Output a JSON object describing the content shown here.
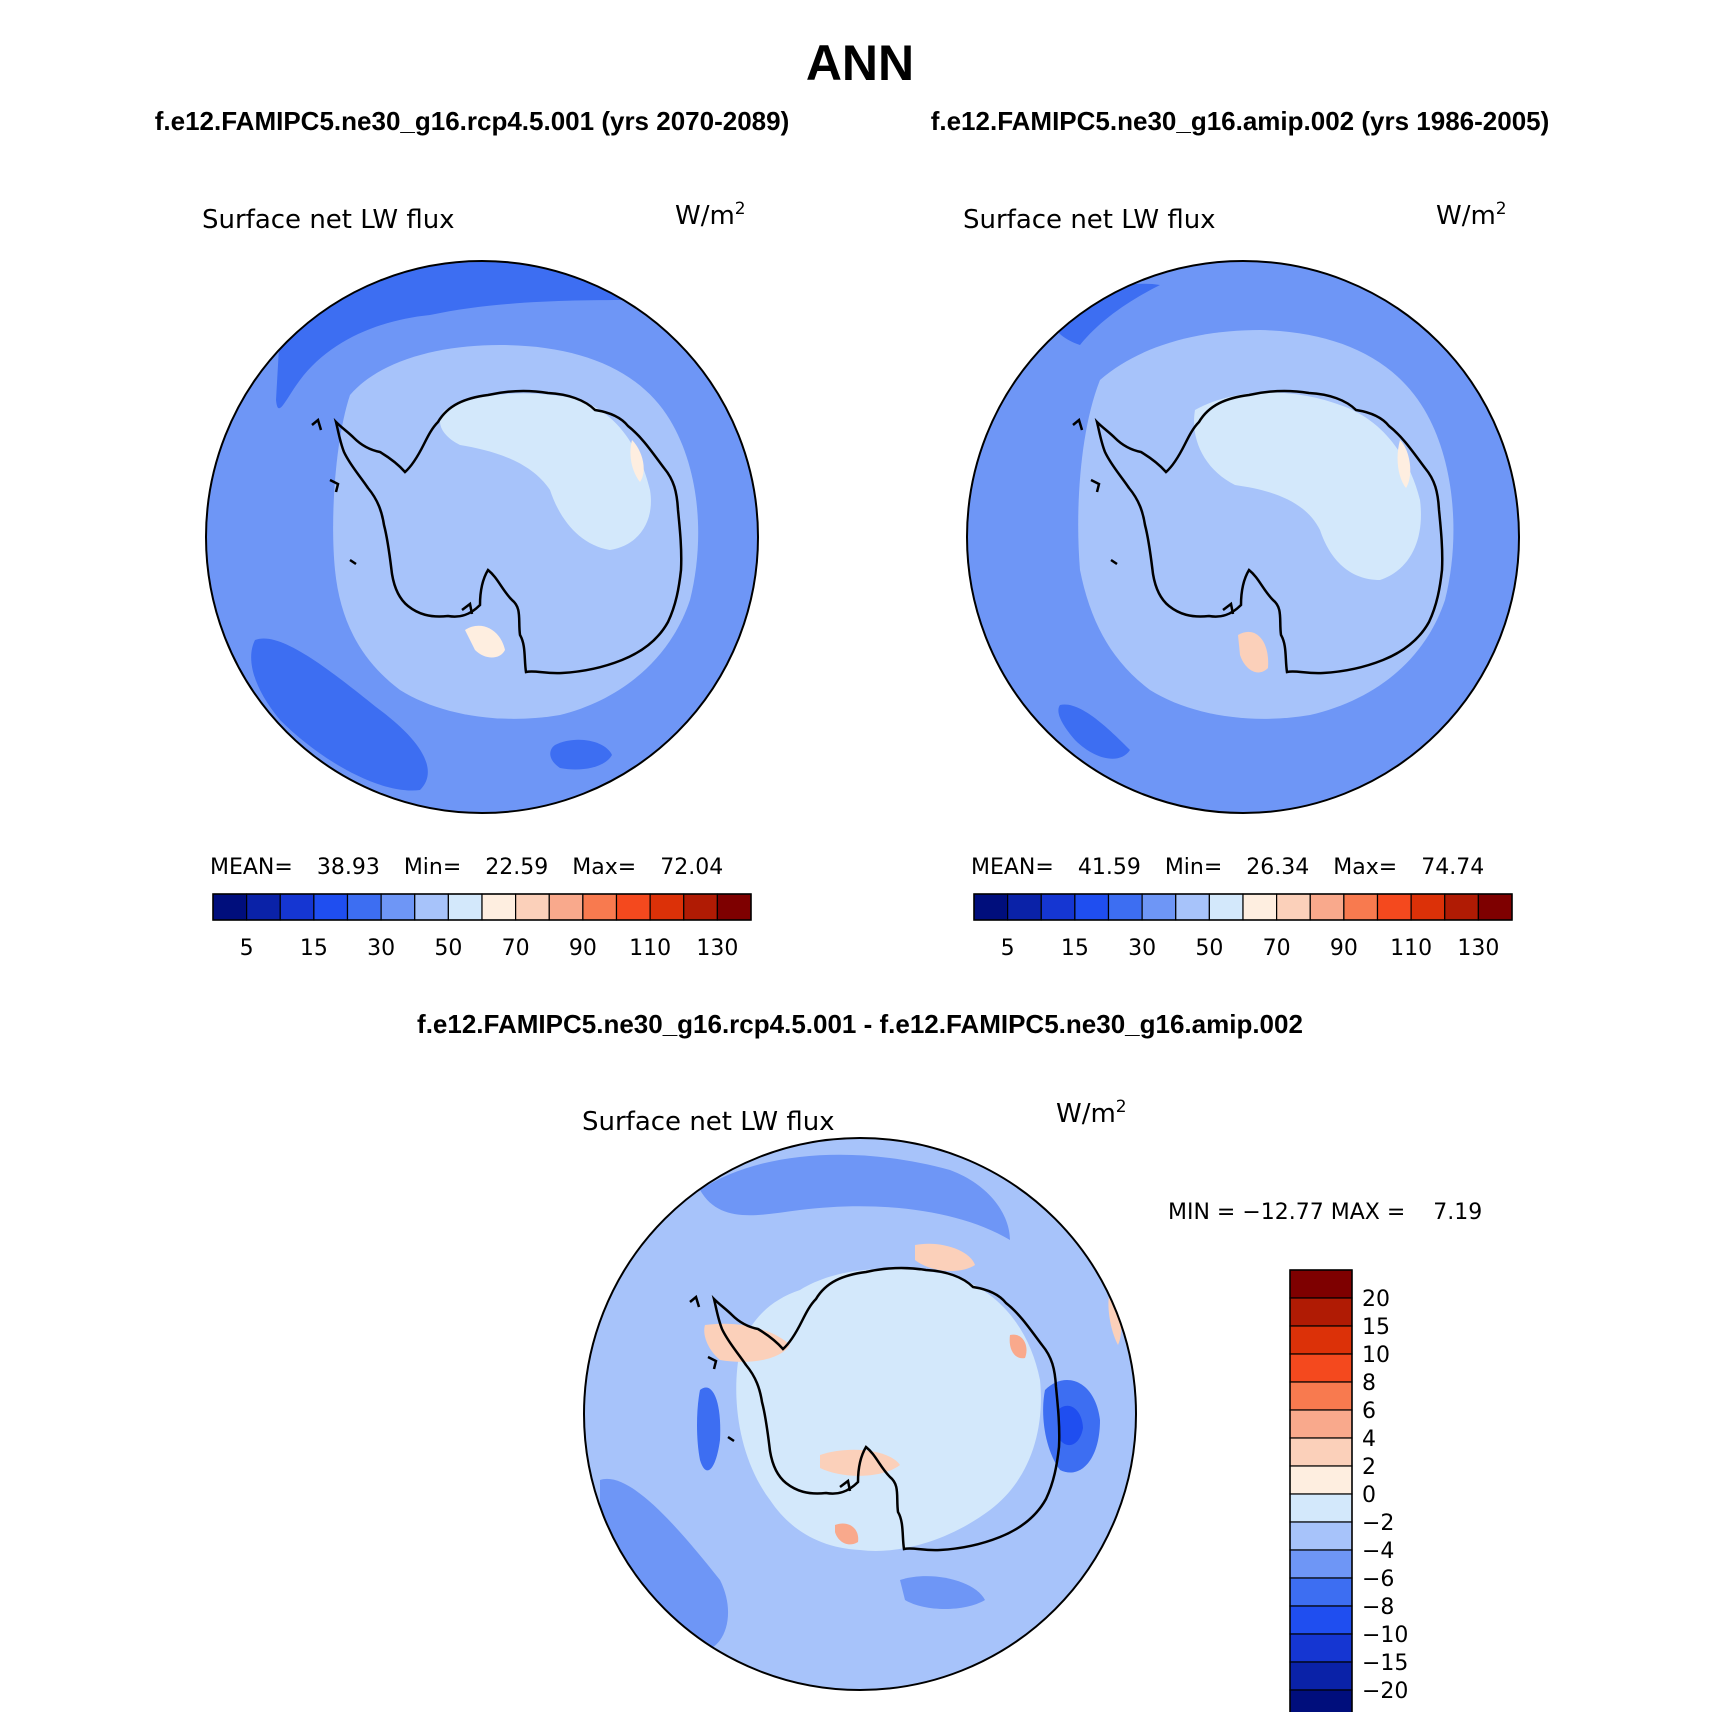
{
  "figure": {
    "title": "ANN",
    "subtitle_left": "f.e12.FAMIPC5.ne30_g16.rcp4.5.001 (yrs 2070-2089)",
    "subtitle_right": "f.e12.FAMIPC5.ne30_g16.amip.002 (yrs 1986-2005)",
    "diff_title": "f.e12.FAMIPC5.ne30_g16.rcp4.5.001 - f.e12.FAMIPC5.ne30_g16.amip.002"
  },
  "panels": [
    {
      "id": "left",
      "variable": "Surface net LW flux",
      "units_base": "W/m",
      "units_exp": "2",
      "stats": {
        "mean_label": "MEAN=",
        "mean": "38.93",
        "min_label": "Min=",
        "min": "22.59",
        "max_label": "Max=",
        "max": "72.04"
      }
    },
    {
      "id": "right",
      "variable": "Surface net LW flux",
      "units_base": "W/m",
      "units_exp": "2",
      "stats": {
        "mean_label": "MEAN=",
        "mean": "41.59",
        "min_label": "Min=",
        "min": "26.34",
        "max_label": "Max=",
        "max": "74.74"
      }
    },
    {
      "id": "diff",
      "variable": "Surface net LW flux",
      "units_base": "W/m",
      "units_exp": "2",
      "minmax": "MIN = −12.77 MAX =    7.19"
    }
  ],
  "colorbar_main": {
    "colors": [
      "#000e7c",
      "#0a22a8",
      "#1536d2",
      "#1f4ef0",
      "#3d6ef2",
      "#6e96f6",
      "#a7c3fa",
      "#d3e8fb",
      "#feeee0",
      "#fbd0ba",
      "#f9a98c",
      "#f87a4f",
      "#f4491e",
      "#dc3108",
      "#b01b04",
      "#7e0000"
    ],
    "tick_labels": [
      "5",
      "15",
      "30",
      "50",
      "70",
      "90",
      "110",
      "130"
    ]
  },
  "colorbar_diff": {
    "colors_top_to_bottom": [
      "#7e0000",
      "#b01b04",
      "#dc3108",
      "#f4491e",
      "#f87a4f",
      "#f9a98c",
      "#fbd0ba",
      "#feeee0",
      "#d3e8fb",
      "#a7c3fa",
      "#6e96f6",
      "#3d6ef2",
      "#1f4ef0",
      "#1536d2",
      "#0a22a8",
      "#000e7c"
    ],
    "tick_labels_top_to_bottom": [
      "20",
      "15",
      "10",
      "8",
      "6",
      "4",
      "2",
      "0",
      "−2",
      "−4",
      "−6",
      "−8",
      "−10",
      "−15",
      "−20"
    ]
  },
  "map_colors": {
    "ocean_dark": "#3d6ef2",
    "ocean": "#6e96f6",
    "ring": "#a7c3fa",
    "interior": "#d3e8fb",
    "warm": "#feeee0",
    "warm2": "#fbd0ba",
    "diff_base": "#a7c3fa",
    "diff_inner": "#d3e8fb",
    "diff_neg": "#6e96f6",
    "diff_neg2": "#3d6ef2",
    "diff_neg3": "#1f4ef0",
    "diff_pos": "#fbd0ba",
    "diff_pos2": "#f9a98c"
  }
}
